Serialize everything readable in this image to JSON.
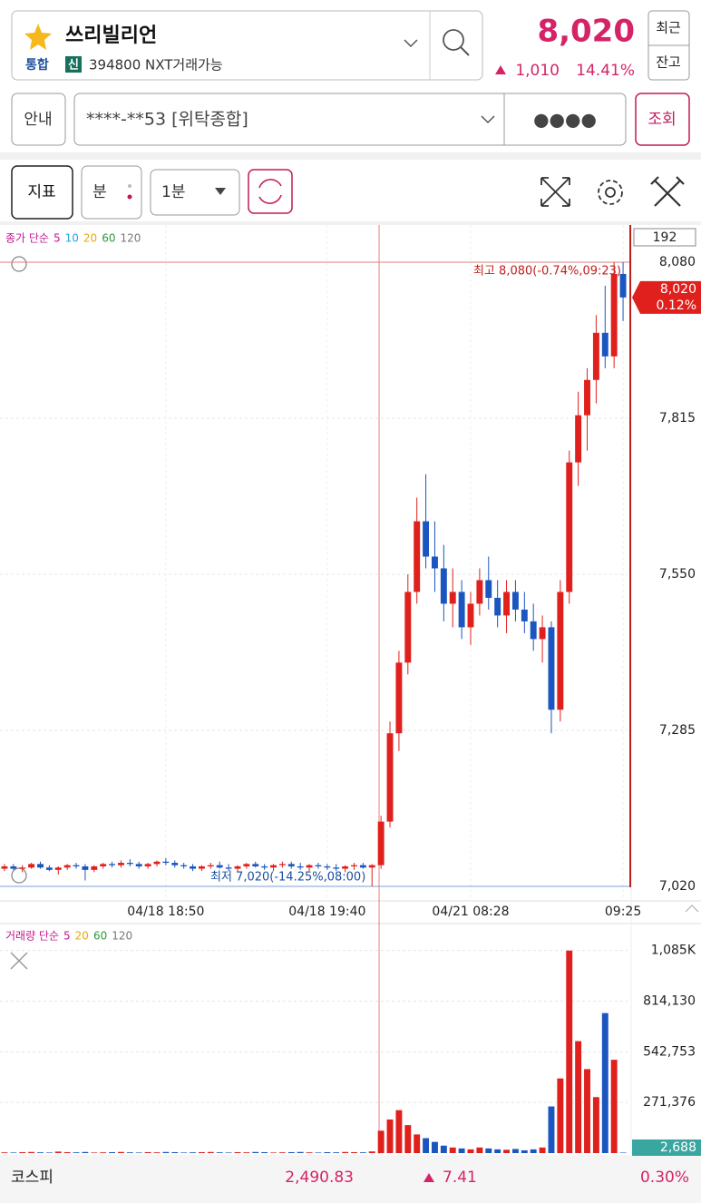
{
  "header": {
    "name": "쓰리빌리언",
    "market": "통합",
    "badge": "신",
    "code_info": "394800 NXT거래가능",
    "price": "8,020",
    "change": "1,010",
    "rate": "14.41%",
    "buttons": [
      "최근",
      "잔고"
    ]
  },
  "account": {
    "guide": "안내",
    "account": "****-**53 [위탁종합]",
    "password": "●●●●",
    "query": "조회"
  },
  "toolbar": {
    "indicator": "지표",
    "unit": "분",
    "interval": "1분"
  },
  "chart_data": [
    {
      "type": "candlestick",
      "legend_label": "종가 단순",
      "legend_periods": [
        {
          "name": "5",
          "color": "#c2188f"
        },
        {
          "name": "10",
          "color": "#2aa7d6"
        },
        {
          "name": "20",
          "color": "#e6a817"
        },
        {
          "name": "60",
          "color": "#2e9a3a"
        },
        {
          "name": "120",
          "color": "#777777"
        }
      ],
      "count_label": "192",
      "high_label": "최고 8,080(-0.74%,09:23)",
      "low_label": "최저 7,020(-14.25%,08:00)",
      "last_label": "8,020",
      "last_rate": "0.12%",
      "up_color": "#e0201c",
      "down_color": "#1b55c0",
      "ylim": [
        7000,
        8140
      ],
      "yticks": [
        {
          "value": 8080,
          "label": "8,080"
        },
        {
          "value": 7815,
          "label": "7,815"
        },
        {
          "value": 7550,
          "label": "7,550"
        },
        {
          "value": 7285,
          "label": "7,285"
        },
        {
          "value": 7020,
          "label": "7,020"
        }
      ],
      "xticks": [
        {
          "value": 18,
          "label": "04/18 18:50"
        },
        {
          "value": 36,
          "label": "04/18 19:40"
        },
        {
          "value": 52,
          "label": "04/21 08:28"
        },
        {
          "value": 69,
          "label": "09:25"
        }
      ],
      "candles": [
        [
          7050,
          7058,
          7046,
          7054
        ],
        [
          7054,
          7058,
          7048,
          7050
        ],
        [
          7050,
          7056,
          7044,
          7052
        ],
        [
          7052,
          7060,
          7050,
          7058
        ],
        [
          7058,
          7062,
          7050,
          7052
        ],
        [
          7052,
          7056,
          7046,
          7048
        ],
        [
          7048,
          7054,
          7040,
          7052
        ],
        [
          7052,
          7058,
          7048,
          7056
        ],
        [
          7056,
          7060,
          7050,
          7054
        ],
        [
          7054,
          7058,
          7030,
          7048
        ],
        [
          7048,
          7056,
          7044,
          7054
        ],
        [
          7054,
          7060,
          7050,
          7058
        ],
        [
          7058,
          7062,
          7052,
          7056
        ],
        [
          7056,
          7064,
          7052,
          7060
        ],
        [
          7060,
          7066,
          7054,
          7058
        ],
        [
          7058,
          7062,
          7050,
          7054
        ],
        [
          7054,
          7060,
          7050,
          7058
        ],
        [
          7058,
          7064,
          7054,
          7062
        ],
        [
          7062,
          7068,
          7056,
          7060
        ],
        [
          7060,
          7064,
          7052,
          7056
        ],
        [
          7056,
          7060,
          7050,
          7054
        ],
        [
          7054,
          7058,
          7046,
          7050
        ],
        [
          7050,
          7056,
          7046,
          7054
        ],
        [
          7054,
          7060,
          7050,
          7056
        ],
        [
          7056,
          7062,
          7050,
          7052
        ],
        [
          7052,
          7058,
          7046,
          7050
        ],
        [
          7050,
          7056,
          7044,
          7054
        ],
        [
          7054,
          7060,
          7050,
          7058
        ],
        [
          7058,
          7062,
          7052,
          7054
        ],
        [
          7054,
          7058,
          7048,
          7052
        ],
        [
          7052,
          7058,
          7046,
          7056
        ],
        [
          7056,
          7062,
          7052,
          7058
        ],
        [
          7058,
          7062,
          7050,
          7054
        ],
        [
          7054,
          7060,
          7048,
          7052
        ],
        [
          7052,
          7058,
          7046,
          7056
        ],
        [
          7056,
          7060,
          7050,
          7054
        ],
        [
          7054,
          7058,
          7048,
          7052
        ],
        [
          7052,
          7058,
          7046,
          7050
        ],
        [
          7050,
          7056,
          7044,
          7054
        ],
        [
          7054,
          7060,
          7048,
          7056
        ],
        [
          7056,
          7060,
          7050,
          7052
        ],
        [
          7052,
          7058,
          7020,
          7056
        ],
        [
          7056,
          7140,
          7050,
          7130
        ],
        [
          7130,
          7300,
          7120,
          7280
        ],
        [
          7280,
          7420,
          7250,
          7400
        ],
        [
          7400,
          7550,
          7380,
          7520
        ],
        [
          7520,
          7680,
          7500,
          7640
        ],
        [
          7640,
          7720,
          7560,
          7580
        ],
        [
          7580,
          7640,
          7520,
          7560
        ],
        [
          7560,
          7600,
          7470,
          7500
        ],
        [
          7500,
          7560,
          7460,
          7520
        ],
        [
          7520,
          7540,
          7440,
          7460
        ],
        [
          7460,
          7520,
          7430,
          7500
        ],
        [
          7500,
          7560,
          7480,
          7540
        ],
        [
          7540,
          7580,
          7490,
          7510
        ],
        [
          7510,
          7540,
          7460,
          7480
        ],
        [
          7480,
          7540,
          7450,
          7520
        ],
        [
          7520,
          7540,
          7470,
          7490
        ],
        [
          7490,
          7520,
          7450,
          7470
        ],
        [
          7470,
          7500,
          7420,
          7440
        ],
        [
          7440,
          7480,
          7400,
          7460
        ],
        [
          7460,
          7470,
          7280,
          7320
        ],
        [
          7320,
          7540,
          7300,
          7520
        ],
        [
          7520,
          7760,
          7500,
          7740
        ],
        [
          7740,
          7860,
          7700,
          7820
        ],
        [
          7820,
          7900,
          7760,
          7880
        ],
        [
          7880,
          7990,
          7840,
          7960
        ],
        [
          7960,
          8040,
          7900,
          7920
        ],
        [
          7920,
          8080,
          7900,
          8060
        ],
        [
          8060,
          8080,
          7980,
          8020
        ]
      ]
    },
    {
      "type": "bar",
      "legend_label": "거래량 단순",
      "legend_periods": [
        {
          "name": "5",
          "color": "#c2188f"
        },
        {
          "name": "20",
          "color": "#e6a817"
        },
        {
          "name": "60",
          "color": "#2e9a3a"
        },
        {
          "name": "120",
          "color": "#777777"
        }
      ],
      "last_label": "2,688",
      "ylim": [
        0,
        1220000
      ],
      "yticks": [
        {
          "value": 1085504,
          "label": "1,085K"
        },
        {
          "value": 814130,
          "label": "814,130"
        },
        {
          "value": 542753,
          "label": "542,753"
        },
        {
          "value": 271376,
          "label": "271,376"
        }
      ],
      "values": [
        4000,
        3000,
        5000,
        6000,
        4000,
        3000,
        8000,
        5000,
        4000,
        6000,
        3000,
        4000,
        5000,
        6000,
        4000,
        3000,
        5000,
        4000,
        6000,
        5000,
        3000,
        4000,
        5000,
        6000,
        4000,
        3000,
        5000,
        4000,
        6000,
        5000,
        3000,
        4000,
        5000,
        6000,
        4000,
        3000,
        5000,
        4000,
        6000,
        5000,
        4000,
        9000,
        120000,
        180000,
        230000,
        150000,
        100000,
        80000,
        60000,
        40000,
        30000,
        25000,
        20000,
        30000,
        25000,
        20000,
        18000,
        22000,
        15000,
        20000,
        30000,
        250000,
        400000,
        1085000,
        600000,
        450000,
        300000,
        750000,
        500000,
        2688
      ]
    }
  ],
  "footer": {
    "index": "코스피",
    "value": "2,490.83",
    "change": "7.41",
    "rate": "0.30%"
  }
}
